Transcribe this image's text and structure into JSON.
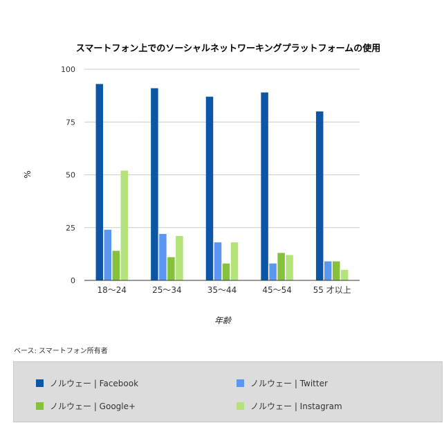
{
  "chart_data": {
    "type": "bar",
    "title": "スマートフォン上でのソーシャルネットワーキングプラットフォームの使用",
    "xlabel": "年齢",
    "ylabel": "%",
    "ylim": [
      0,
      100
    ],
    "yticks": [
      "0",
      "25",
      "50",
      "75",
      "100"
    ],
    "grid": true,
    "categories": [
      "18～24",
      "25～34",
      "35～44",
      "45～54",
      "55 才以上"
    ],
    "series": [
      {
        "name": "ノルウェー | Facebook",
        "color": "#0d56a6",
        "values": [
          93,
          91,
          87,
          89,
          80
        ]
      },
      {
        "name": "ノルウェー | Twitter",
        "color": "#5b96f0",
        "values": [
          24,
          22,
          18,
          8,
          9
        ]
      },
      {
        "name": "ノルウェー | Google+",
        "color": "#86c13c",
        "values": [
          14,
          11,
          8,
          13,
          9
        ]
      },
      {
        "name": "ノルウェー | Instagram",
        "color": "#b3e37a",
        "values": [
          52,
          21,
          18,
          12,
          5
        ]
      }
    ],
    "legend_position": "bottom"
  },
  "note": "ベース: スマートフォン所有者"
}
